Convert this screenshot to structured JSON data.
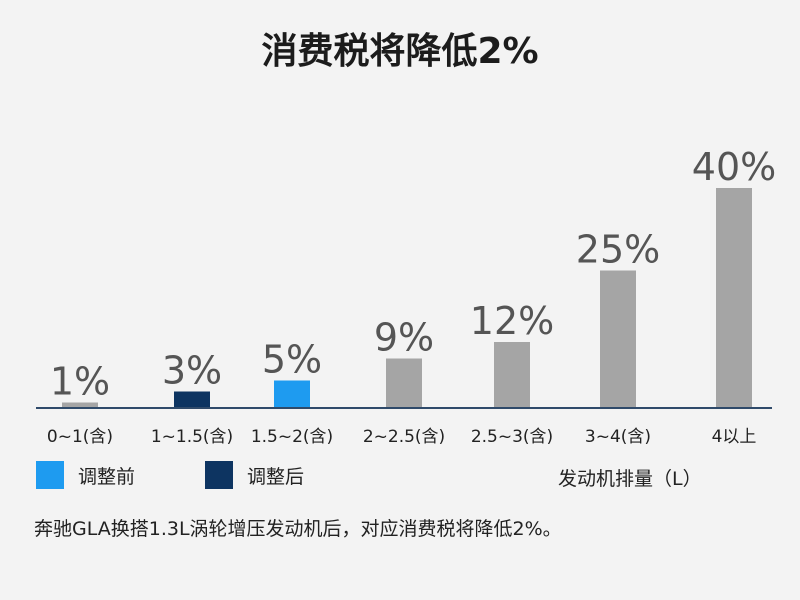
{
  "chart_data": {
    "type": "bar",
    "title": "消费税将降低2%",
    "categories": [
      "0~1(含)",
      "1~1.5(含)",
      "1.5~2(含)",
      "2~2.5(含)",
      "2.5~3(含)",
      "3~4(含)",
      "4以上"
    ],
    "values": [
      1,
      3,
      5,
      9,
      12,
      25,
      40
    ],
    "data_labels": [
      "1%",
      "3%",
      "5%",
      "9%",
      "12%",
      "25%",
      "40%"
    ],
    "bar_groups": [
      "default",
      "after",
      "before",
      "default",
      "default",
      "default",
      "default"
    ],
    "colors": {
      "default": "#a5a5a5",
      "before": "#1e9bf0",
      "after": "#0d3461",
      "axis": "#2f4a6a"
    },
    "xlabel": "发动机排量（L）",
    "ylabel": "",
    "ylim": [
      0,
      40
    ],
    "grid": false,
    "legend": {
      "position": "bottom-left",
      "entries": [
        {
          "label": "调整前",
          "color": "#1e9bf0"
        },
        {
          "label": "调整后",
          "color": "#0d3461"
        }
      ]
    },
    "caption": "奔驰GLA换搭1.3L涡轮增压发动机后，对应消费税将降低2%。"
  }
}
